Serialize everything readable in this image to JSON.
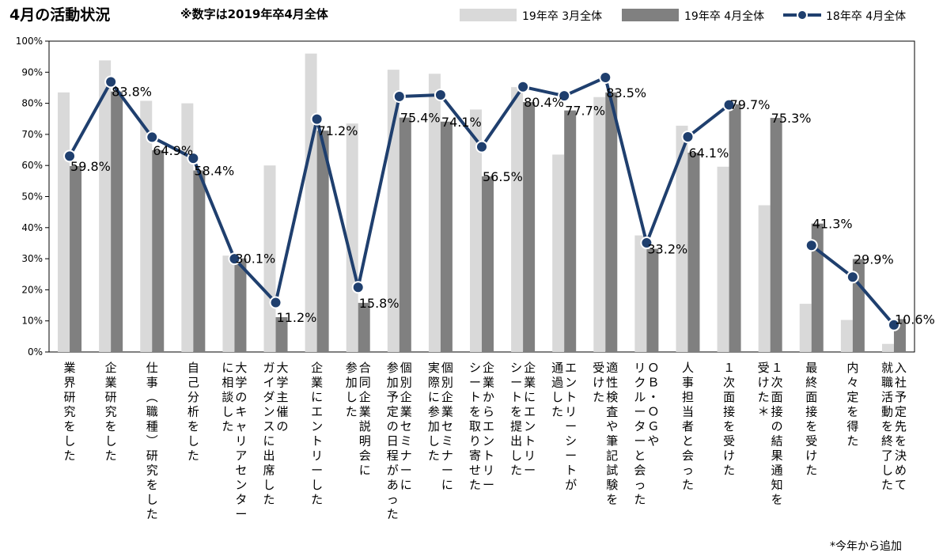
{
  "header": {
    "title": "4月の活動状況",
    "subtitle": "※数字は2019年卒4月全体"
  },
  "footnote": "*今年から追加",
  "colors": {
    "series1": "#d9d9d9",
    "series2": "#808080",
    "series3": "#1f3f6e"
  },
  "chart_data": {
    "type": "bar",
    "title": "4月の活動状況",
    "subtitle": "※数字は2019年卒4月全体",
    "xlabel": "",
    "ylabel": "",
    "ylim": [
      0,
      100
    ],
    "yticks": [
      "0%",
      "10%",
      "20%",
      "30%",
      "40%",
      "50%",
      "60%",
      "70%",
      "80%",
      "90%",
      "100%"
    ],
    "grid": false,
    "legend": "top-right",
    "categories": [
      "業界研究をした",
      "企業研究をした",
      "仕事（職種）研究をした",
      "自己分析をした",
      "大学のキャリアセンターに相談した",
      "大学主催のガイダンスに出席した",
      "企業にエントリーした",
      "合同企業説明会に参加した",
      "個別企業セミナーに参加予定の日程があった",
      "個別企業セミナーに実際に参加した",
      "企業からエントリーシートを取り寄せた",
      "企業にエントリーシートを提出した",
      "エントリーシートが通過した",
      "適性検査や筆記試験を受けた",
      "ＯＢ・ＯＧやリクルーターと会った",
      "人事担当者と会った",
      "１次面接を受けた",
      "１次面接の結果通知を受けた＊",
      "最終面接を受けた",
      "内々定を得た",
      "入社予定先を決めて就職活動を終了した"
    ],
    "category_lines": [
      [
        "業界研究をした"
      ],
      [
        "企業研究をした"
      ],
      [
        "仕事︵職種︶研究をした"
      ],
      [
        "自己分析をした"
      ],
      [
        "大学のキャリアセンター",
        "に相談した"
      ],
      [
        "大学主催の",
        "ガイダンスに出席した"
      ],
      [
        "企業にエントリーした"
      ],
      [
        "合同企業説明会に",
        "参加した"
      ],
      [
        "個別企業セミナーに",
        "参加予定の日程があった"
      ],
      [
        "個別企業セミナーに",
        "実際に参加した"
      ],
      [
        "企業からエントリー",
        "シートを取り寄せた"
      ],
      [
        "企業にエントリー",
        "シートを提出した"
      ],
      [
        "エントリーシートが",
        "通過した"
      ],
      [
        "適性検査や筆記試験を",
        "受けた"
      ],
      [
        "ＯＢ・ＯＧや",
        "リクルーターと会った"
      ],
      [
        "人事担当者と会った"
      ],
      [
        "１次面接を受けた"
      ],
      [
        "１次面接の結果通知を",
        "受けた＊"
      ],
      [
        "最終面接を受けた"
      ],
      [
        "内々定を得た"
      ],
      [
        "入社予定先を決めて",
        "就職活動を終了した"
      ]
    ],
    "series": [
      {
        "name": "19年卒 3月全体",
        "kind": "bar",
        "values": [
          83.5,
          93.8,
          80.8,
          80.0,
          31.0,
          60.0,
          96.0,
          73.5,
          90.8,
          89.5,
          78.0,
          85.2,
          63.5,
          82.0,
          37.5,
          72.8,
          59.6,
          47.2,
          15.5,
          10.3,
          2.6
        ]
      },
      {
        "name": "19年卒 4月全体",
        "kind": "bar",
        "values": [
          59.8,
          83.8,
          64.9,
          58.4,
          30.1,
          11.2,
          71.2,
          15.8,
          75.4,
          74.1,
          56.5,
          80.4,
          77.7,
          83.5,
          33.2,
          64.1,
          79.7,
          75.3,
          41.3,
          29.9,
          10.6
        ],
        "labels": [
          "59.8%",
          "83.8%",
          "64.9%",
          "58.4%",
          "30.1%",
          "11.2%",
          "71.2%",
          "15.8%",
          "75.4%",
          "74.1%",
          "56.5%",
          "80.4%",
          "77.7%",
          "83.5%",
          "33.2%",
          "64.1%",
          "79.7%",
          "75.3%",
          "41.3%",
          "29.9%",
          "10.6%"
        ]
      },
      {
        "name": "18年卒 4月全体",
        "kind": "line",
        "values": [
          63.0,
          86.9,
          69.1,
          62.3,
          30.0,
          15.9,
          74.9,
          20.8,
          82.2,
          82.7,
          66.0,
          85.3,
          82.4,
          88.3,
          35.1,
          69.2,
          79.5,
          null,
          34.3,
          24.1,
          8.7
        ]
      }
    ]
  }
}
